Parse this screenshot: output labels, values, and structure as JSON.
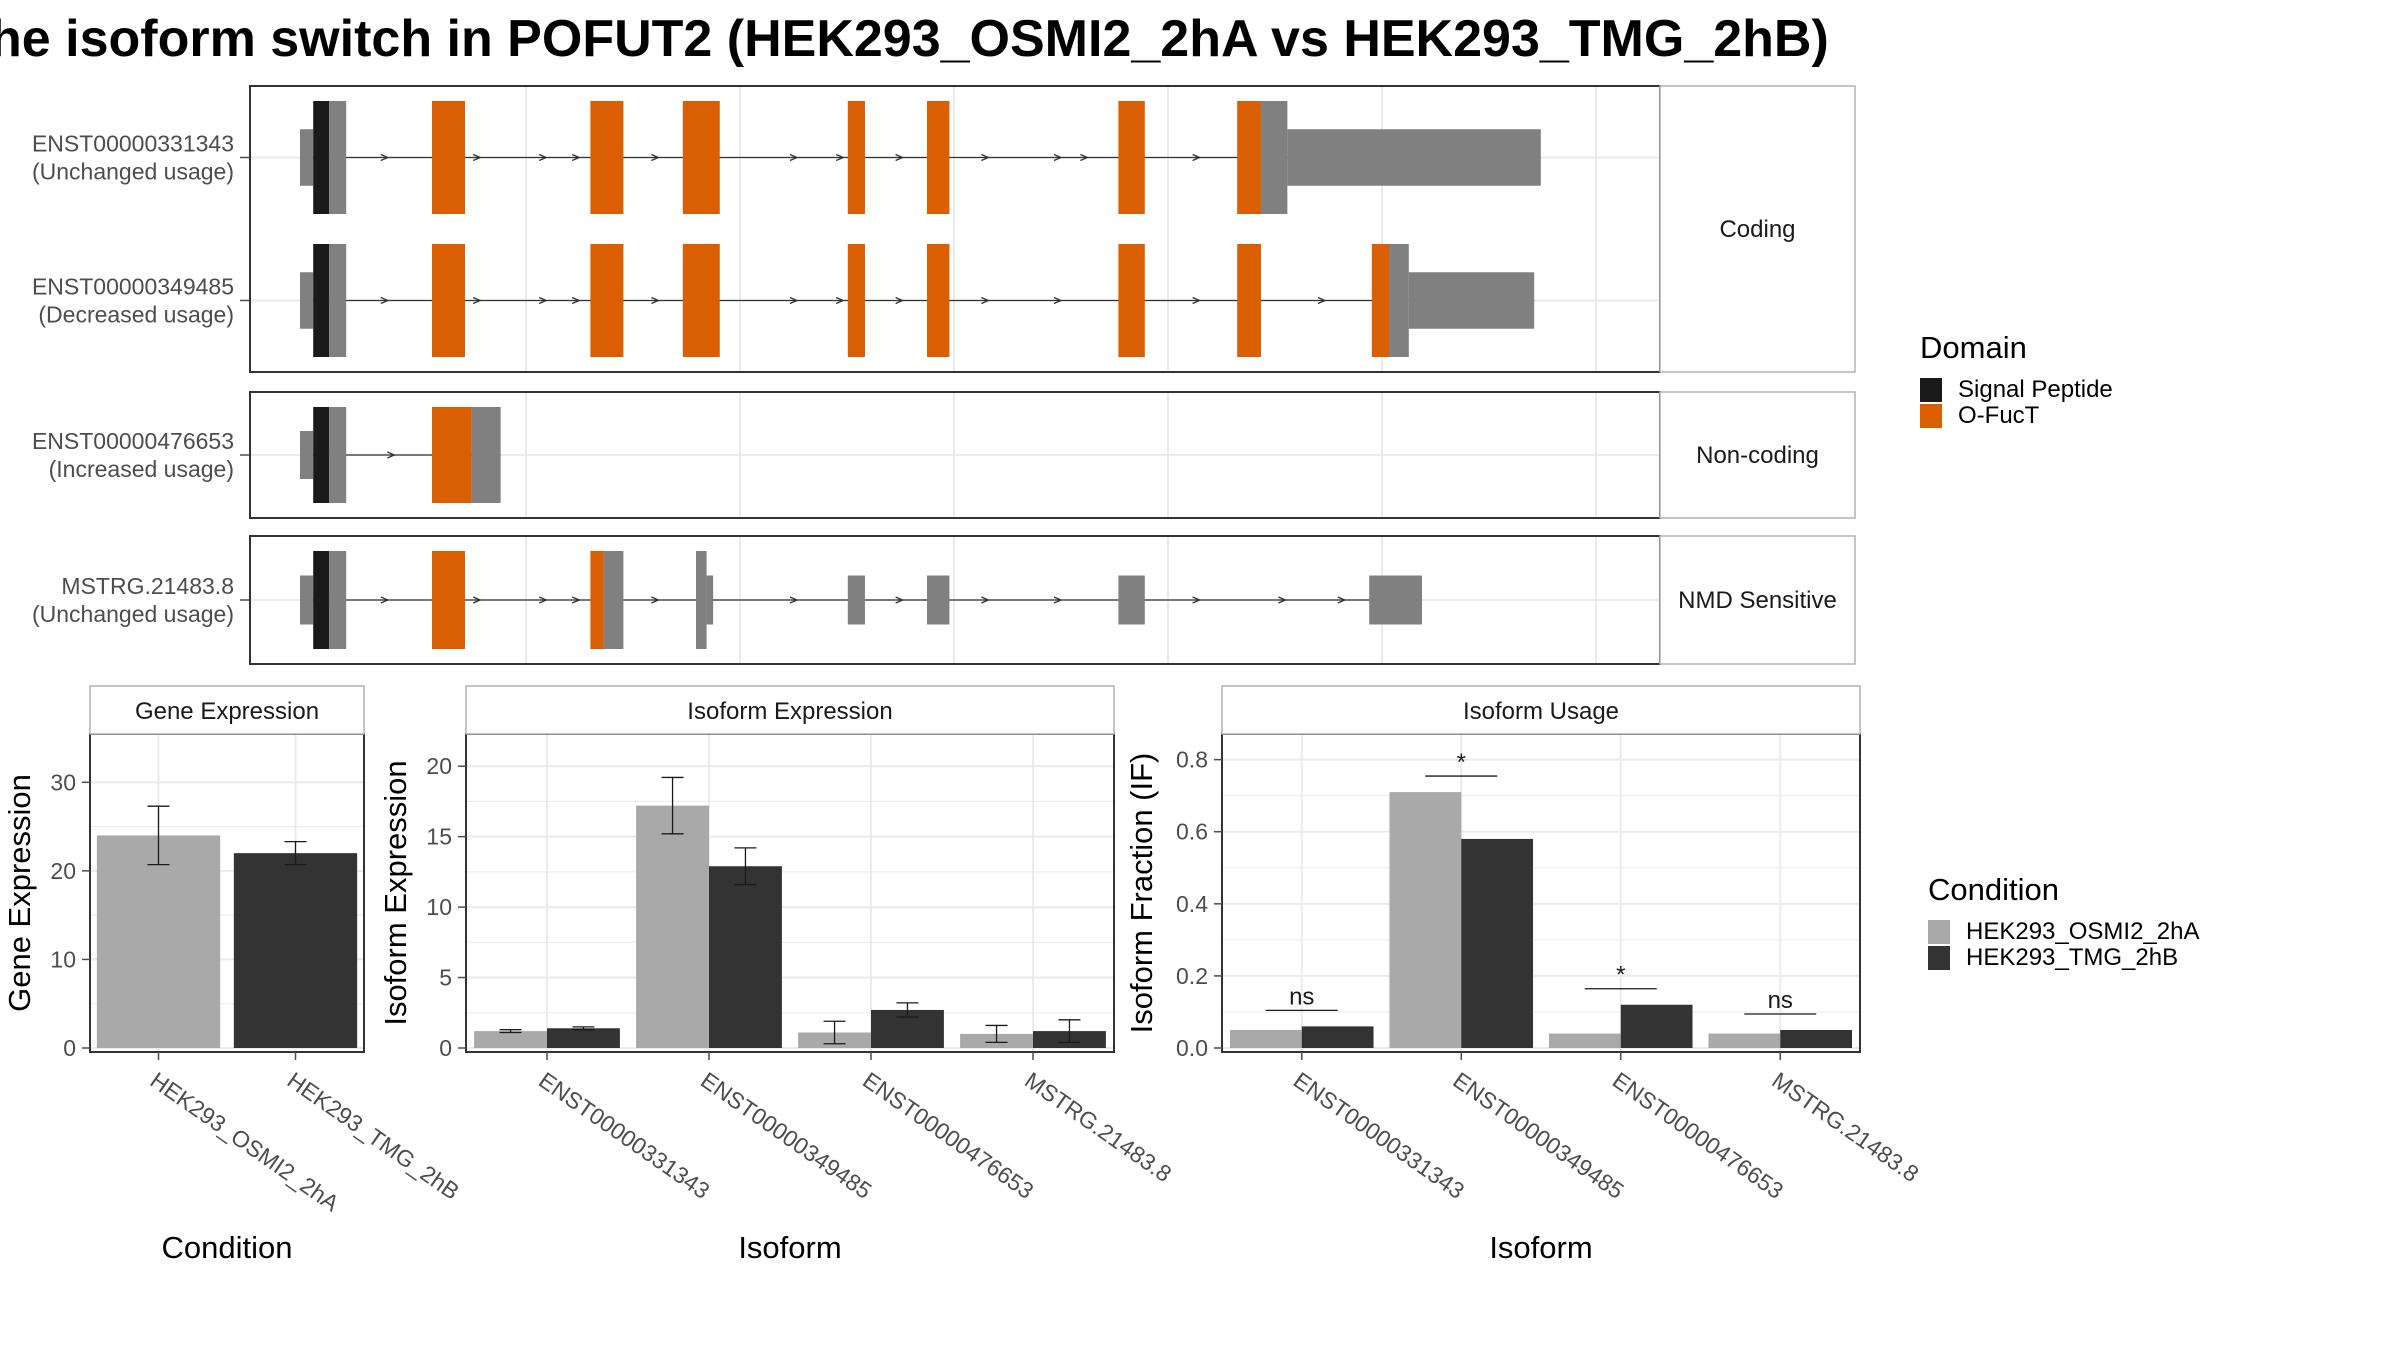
{
  "title": "he isoform switch in POFUT2 (HEK293_OSMI2_2hA vs HEK293_TMG_2hB)",
  "colors": {
    "signal_peptide": "#1a1a1a",
    "o_fuct": "#d95f02",
    "utr": "#808080",
    "cond_a": "#a9a9a9",
    "cond_b": "#333333"
  },
  "chart_data": [
    {
      "type": "diagram",
      "panel": "transcript-structure",
      "x_range": [
        0,
        100
      ],
      "facets": [
        {
          "label": "Coding",
          "transcripts": [
            {
              "id": "ENST00000331343",
              "usage": "(Unchanged usage)",
              "segments": [
                [
                  0,
                  1,
                  "utr"
                ],
                [
                  1,
                  2.2,
                  "signal_peptide"
                ],
                [
                  2.2,
                  3.5,
                  "utr"
                ],
                [
                  10,
                  12.5,
                  "o_fuct"
                ],
                [
                  22,
                  24.5,
                  "o_fuct"
                ],
                [
                  29,
                  31.8,
                  "o_fuct"
                ],
                [
                  41.5,
                  42.8,
                  "o_fuct"
                ],
                [
                  47.5,
                  49.2,
                  "o_fuct"
                ],
                [
                  62,
                  64,
                  "o_fuct"
                ],
                [
                  71,
                  72.8,
                  "o_fuct"
                ],
                [
                  72.8,
                  74.8,
                  "utr"
                ],
                [
                  74.8,
                  94,
                  "utr_thin"
                ]
              ],
              "arrows": [
                6.5,
                13.5,
                18.5,
                21,
                27,
                37.5,
                41,
                45.5,
                52,
                57.5,
                59.5,
                68
              ]
            },
            {
              "id": "ENST00000349485",
              "usage": "(Decreased usage)",
              "segments": [
                [
                  0,
                  1,
                  "utr"
                ],
                [
                  1,
                  2.2,
                  "signal_peptide"
                ],
                [
                  2.2,
                  3.5,
                  "utr"
                ],
                [
                  10,
                  12.5,
                  "o_fuct"
                ],
                [
                  22,
                  24.5,
                  "o_fuct"
                ],
                [
                  29,
                  31.8,
                  "o_fuct"
                ],
                [
                  41.5,
                  42.8,
                  "o_fuct"
                ],
                [
                  47.5,
                  49.2,
                  "o_fuct"
                ],
                [
                  62,
                  64,
                  "o_fuct"
                ],
                [
                  71,
                  72.8,
                  "o_fuct"
                ],
                [
                  81.2,
                  82.5,
                  "o_fuct"
                ],
                [
                  82.5,
                  84,
                  "utr"
                ],
                [
                  84,
                  93.5,
                  "utr_thin"
                ]
              ],
              "arrows": [
                6.5,
                13.5,
                18.5,
                21,
                27,
                37.5,
                41,
                45.5,
                52,
                57.5,
                68,
                77.5
              ]
            }
          ]
        },
        {
          "label": "Non-coding",
          "transcripts": [
            {
              "id": "ENST00000476653",
              "usage": "(Increased usage)",
              "segments": [
                [
                  0,
                  1,
                  "utr"
                ],
                [
                  1,
                  2.2,
                  "signal_peptide"
                ],
                [
                  2.2,
                  3.5,
                  "utr"
                ],
                [
                  10,
                  13,
                  "o_fuct"
                ],
                [
                  13,
                  15.2,
                  "utr"
                ]
              ],
              "arrows": [
                7
              ]
            }
          ]
        },
        {
          "label": "NMD Sensitive",
          "transcripts": [
            {
              "id": "MSTRG.21483.8",
              "usage": "(Unchanged usage)",
              "segments": [
                [
                  0,
                  1,
                  "utr"
                ],
                [
                  1,
                  2.2,
                  "signal_peptide"
                ],
                [
                  2.2,
                  3.5,
                  "utr"
                ],
                [
                  10,
                  12.5,
                  "o_fuct"
                ],
                [
                  22,
                  23,
                  "o_fuct"
                ],
                [
                  23,
                  24.5,
                  "utr"
                ],
                [
                  30,
                  30.8,
                  "utr"
                ],
                [
                  30.8,
                  31.3,
                  "utr_thin"
                ],
                [
                  41.5,
                  42.8,
                  "utr_thin"
                ],
                [
                  47.5,
                  49.2,
                  "utr_thin"
                ],
                [
                  62,
                  64,
                  "utr_thin"
                ],
                [
                  81,
                  85,
                  "utr_thin"
                ]
              ],
              "arrows": [
                6.5,
                13.5,
                18.5,
                21,
                27,
                37.5,
                45.5,
                52,
                57.5,
                68,
                74.5,
                79
              ]
            }
          ]
        }
      ],
      "legend": {
        "title": "Domain",
        "entries": [
          "Signal Peptide",
          "O-FucT"
        ]
      }
    },
    {
      "type": "bar",
      "panel": "gene-expression",
      "strip": "Gene Expression",
      "xlabel": "Condition",
      "ylabel": "Gene Expression",
      "ylim": [
        0,
        35
      ],
      "yticks": [
        0,
        10,
        20,
        30
      ],
      "categories": [
        "HEK293_OSMI2_2hA",
        "HEK293_TMG_2hB"
      ],
      "values": [
        24,
        22
      ],
      "errors": [
        3.3,
        1.3
      ]
    },
    {
      "type": "bar",
      "panel": "isoform-expression",
      "strip": "Isoform Expression",
      "xlabel": "Isoform",
      "ylabel": "Isoform Expression",
      "ylim": [
        0,
        22
      ],
      "yticks": [
        0,
        5,
        10,
        15,
        20
      ],
      "categories": [
        "ENST00000331343",
        "ENST00000349485",
        "ENST00000476653",
        "MSTRG.21483.8"
      ],
      "series": [
        {
          "values": [
            1.2,
            17.2,
            1.1,
            1.0
          ],
          "errors": [
            0.1,
            2.0,
            0.8,
            0.6
          ]
        },
        {
          "values": [
            1.4,
            12.9,
            2.7,
            1.2
          ],
          "errors": [
            0.1,
            1.3,
            0.5,
            0.8
          ]
        }
      ]
    },
    {
      "type": "bar",
      "panel": "isoform-usage",
      "strip": "Isoform Usage",
      "xlabel": "Isoform",
      "ylabel": "Isoform Fraction (IF)",
      "ylim": [
        0,
        0.86
      ],
      "yticks": [
        "0.0",
        "0.2",
        "0.4",
        "0.6",
        "0.8"
      ],
      "categories": [
        "ENST00000331343",
        "ENST00000349485",
        "ENST00000476653",
        "MSTRG.21483.8"
      ],
      "series": [
        {
          "values": [
            0.05,
            0.71,
            0.04,
            0.04
          ]
        },
        {
          "values": [
            0.06,
            0.58,
            0.12,
            0.05
          ]
        }
      ],
      "significance": [
        "ns",
        "*",
        "*",
        "ns"
      ]
    }
  ],
  "condition_legend": {
    "title": "Condition",
    "entries": [
      "HEK293_OSMI2_2hA",
      "HEK293_TMG_2hB"
    ]
  }
}
